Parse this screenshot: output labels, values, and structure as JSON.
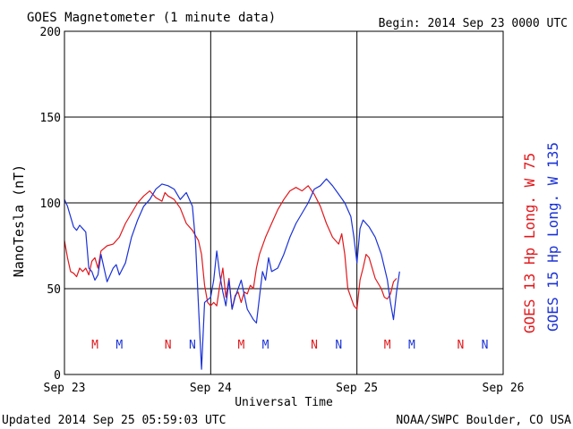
{
  "chart_data": {
    "type": "line",
    "title": "GOES Magnetometer (1 minute data)",
    "begin_label": "Begin:  2014 Sep 23 0000 UTC",
    "xlabel": "Universal Time",
    "ylabel": "NanoTesla (nT)",
    "xlim": [
      0,
      72
    ],
    "ylim": [
      0,
      200
    ],
    "grid": true,
    "x_ticks": [
      {
        "x": 0,
        "label": "Sep 23"
      },
      {
        "x": 24,
        "label": "Sep 24"
      },
      {
        "x": 48,
        "label": "Sep 25"
      },
      {
        "x": 72,
        "label": "Sep 26"
      }
    ],
    "y_ticks": [
      0,
      50,
      100,
      150,
      200
    ],
    "series": [
      {
        "name": "GOES 13 Hp  Long. W 75",
        "color": "#e0181c",
        "points": [
          [
            0,
            78
          ],
          [
            0.5,
            68
          ],
          [
            1,
            60
          ],
          [
            1.5,
            59
          ],
          [
            2,
            57
          ],
          [
            2.5,
            62
          ],
          [
            3,
            60
          ],
          [
            3.5,
            62
          ],
          [
            4,
            58
          ],
          [
            4.5,
            66
          ],
          [
            5,
            68
          ],
          [
            5.5,
            62
          ],
          [
            6,
            72
          ],
          [
            7,
            75
          ],
          [
            8,
            76
          ],
          [
            9,
            80
          ],
          [
            10,
            88
          ],
          [
            11,
            94
          ],
          [
            12,
            100
          ],
          [
            13,
            104
          ],
          [
            14,
            107
          ],
          [
            15,
            103
          ],
          [
            16,
            101
          ],
          [
            16.5,
            106
          ],
          [
            17,
            104
          ],
          [
            17.5,
            103
          ],
          [
            18,
            102
          ],
          [
            19,
            97
          ],
          [
            20,
            88
          ],
          [
            21,
            84
          ],
          [
            22,
            78
          ],
          [
            22.5,
            70
          ],
          [
            23,
            52
          ],
          [
            23.5,
            42
          ],
          [
            24,
            40
          ],
          [
            24.5,
            42
          ],
          [
            25,
            40
          ],
          [
            25.5,
            52
          ],
          [
            26,
            62
          ],
          [
            26.5,
            45
          ],
          [
            27,
            56
          ],
          [
            27.5,
            38
          ],
          [
            28,
            46
          ],
          [
            28.5,
            48
          ],
          [
            29,
            42
          ],
          [
            29.5,
            48
          ],
          [
            30,
            47
          ],
          [
            30.5,
            52
          ],
          [
            31,
            50
          ],
          [
            31.5,
            62
          ],
          [
            32,
            70
          ],
          [
            33,
            80
          ],
          [
            34,
            88
          ],
          [
            35,
            96
          ],
          [
            36,
            102
          ],
          [
            37,
            107
          ],
          [
            38,
            109
          ],
          [
            39,
            107
          ],
          [
            40,
            110
          ],
          [
            41,
            105
          ],
          [
            42,
            98
          ],
          [
            43,
            88
          ],
          [
            44,
            80
          ],
          [
            45,
            76
          ],
          [
            45.5,
            82
          ],
          [
            46,
            70
          ],
          [
            46.5,
            50
          ],
          [
            47,
            45
          ],
          [
            47.5,
            40
          ],
          [
            48,
            38
          ],
          [
            48.5,
            55
          ],
          [
            49,
            62
          ],
          [
            49.5,
            70
          ],
          [
            50,
            68
          ],
          [
            51,
            56
          ],
          [
            52,
            50
          ],
          [
            52.5,
            45
          ],
          [
            53,
            44
          ],
          [
            53.5,
            47
          ],
          [
            54,
            54
          ],
          [
            54.5,
            56
          ]
        ]
      },
      {
        "name": "GOES 15 Hp  Long. W 135",
        "color": "#1a32d6",
        "points": [
          [
            0,
            102
          ],
          [
            0.5,
            98
          ],
          [
            1,
            92
          ],
          [
            1.5,
            86
          ],
          [
            2,
            84
          ],
          [
            2.5,
            87
          ],
          [
            3,
            85
          ],
          [
            3.5,
            83
          ],
          [
            4,
            62
          ],
          [
            4.5,
            60
          ],
          [
            5,
            55
          ],
          [
            5.5,
            58
          ],
          [
            6,
            70
          ],
          [
            6.5,
            62
          ],
          [
            7,
            54
          ],
          [
            7.5,
            58
          ],
          [
            8,
            62
          ],
          [
            8.5,
            64
          ],
          [
            9,
            58
          ],
          [
            10,
            65
          ],
          [
            11,
            80
          ],
          [
            12,
            90
          ],
          [
            13,
            98
          ],
          [
            14,
            102
          ],
          [
            15,
            108
          ],
          [
            16,
            111
          ],
          [
            17,
            110
          ],
          [
            18,
            108
          ],
          [
            19,
            102
          ],
          [
            20,
            106
          ],
          [
            21,
            98
          ],
          [
            21.5,
            78
          ],
          [
            22,
            40
          ],
          [
            22.5,
            3
          ],
          [
            23,
            42
          ],
          [
            24,
            45
          ],
          [
            24.5,
            55
          ],
          [
            25,
            72
          ],
          [
            25.5,
            58
          ],
          [
            26,
            48
          ],
          [
            26.5,
            40
          ],
          [
            27,
            55
          ],
          [
            27.5,
            38
          ],
          [
            28,
            45
          ],
          [
            29,
            55
          ],
          [
            30,
            38
          ],
          [
            31,
            32
          ],
          [
            31.5,
            30
          ],
          [
            32,
            45
          ],
          [
            32.5,
            60
          ],
          [
            33,
            55
          ],
          [
            33.5,
            68
          ],
          [
            34,
            60
          ],
          [
            35,
            62
          ],
          [
            36,
            70
          ],
          [
            37,
            80
          ],
          [
            38,
            88
          ],
          [
            39,
            94
          ],
          [
            40,
            100
          ],
          [
            41,
            108
          ],
          [
            42,
            110
          ],
          [
            43,
            114
          ],
          [
            44,
            110
          ],
          [
            45,
            105
          ],
          [
            46,
            100
          ],
          [
            47,
            92
          ],
          [
            47.5,
            80
          ],
          [
            48,
            65
          ],
          [
            48.5,
            85
          ],
          [
            49,
            90
          ],
          [
            50,
            86
          ],
          [
            51,
            80
          ],
          [
            52,
            70
          ],
          [
            53,
            55
          ],
          [
            53.5,
            42
          ],
          [
            54,
            32
          ],
          [
            54.5,
            48
          ],
          [
            55,
            60
          ]
        ]
      }
    ],
    "markers": [
      {
        "label": "M",
        "x": 5,
        "series": 0
      },
      {
        "label": "M",
        "x": 9,
        "series": 1
      },
      {
        "label": "N",
        "x": 17,
        "series": 0
      },
      {
        "label": "N",
        "x": 21,
        "series": 1
      },
      {
        "label": "M",
        "x": 29,
        "series": 0
      },
      {
        "label": "M",
        "x": 33,
        "series": 1
      },
      {
        "label": "N",
        "x": 41,
        "series": 0
      },
      {
        "label": "N",
        "x": 45,
        "series": 1
      },
      {
        "label": "M",
        "x": 53,
        "series": 0
      },
      {
        "label": "M",
        "x": 57,
        "series": 1
      },
      {
        "label": "N",
        "x": 65,
        "series": 0
      },
      {
        "label": "N",
        "x": 69,
        "series": 1
      }
    ],
    "footer_left": "Updated 2014 Sep 25 05:59:03 UTC",
    "footer_right": "NOAA/SWPC Boulder, CO USA"
  }
}
